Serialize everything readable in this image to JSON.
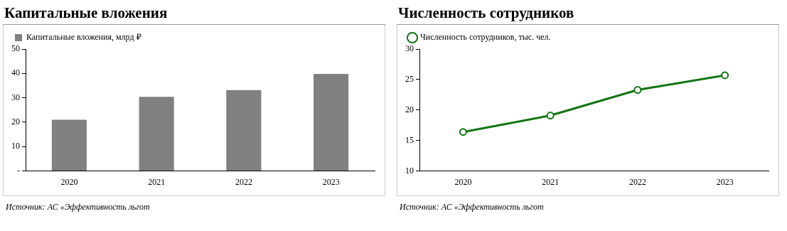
{
  "chart_data": [
    {
      "type": "bar",
      "title": "Капитальные вложения",
      "categories": [
        "2020",
        "2021",
        "2022",
        "2023"
      ],
      "series": [
        {
          "name": "Капитальные вложения, млрд ₽",
          "color": "#808080",
          "values": [
            21,
            30.4,
            33.2,
            39.8
          ]
        }
      ],
      "ylim": [
        0,
        50
      ],
      "yticks": [
        {
          "value": 0,
          "label": "-"
        },
        10,
        20,
        30,
        40,
        50
      ],
      "grid": false,
      "legend": "top left",
      "annotations": [
        "Источник: АС «Эффективность льгот"
      ]
    },
    {
      "type": "line",
      "title": "Численность сотрудников",
      "categories": [
        "2020",
        "2021",
        "2022",
        "2023"
      ],
      "series": [
        {
          "name": "Численность сотрудников, тыс. чел.",
          "color": "#137413",
          "values": [
            16.4,
            19.1,
            23.3,
            25.7
          ]
        }
      ],
      "ylim": [
        10,
        30
      ],
      "yticks": [
        10,
        15,
        20,
        25,
        30
      ],
      "grid": false,
      "legend": "top left",
      "marker": "circle",
      "line_style": "solid",
      "annotations": [
        "Источник: АС «Эффективность льгот"
      ]
    }
  ]
}
